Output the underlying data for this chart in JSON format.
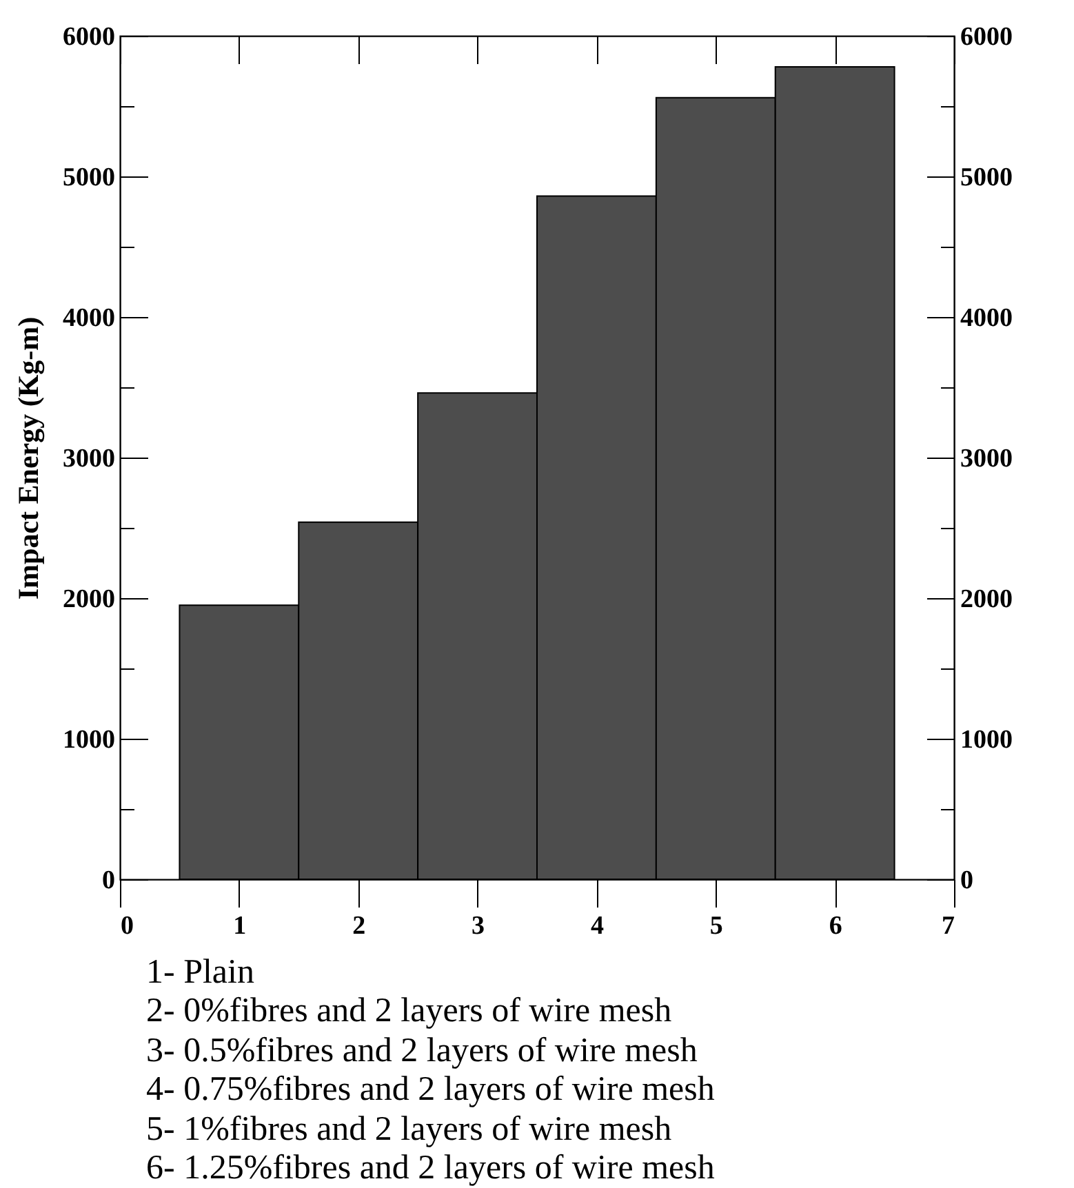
{
  "chart_data": {
    "type": "bar",
    "x": [
      1,
      2,
      3,
      4,
      5,
      6
    ],
    "values": [
      1950,
      2540,
      3460,
      4860,
      5560,
      5780
    ],
    "color": "#4d4d4d",
    "ylabel": "Impact Energy (Kg-m)",
    "xlim": [
      0,
      7
    ],
    "xticks": [
      0,
      1,
      2,
      3,
      4,
      5,
      6,
      7
    ],
    "ylim": [
      0,
      6000
    ],
    "yticks": [
      0,
      {
        "value": 500,
        "label": null
      },
      1000,
      {
        "value": 1500,
        "label": null
      },
      2000,
      {
        "value": 2500,
        "label": null
      },
      3000,
      {
        "value": 3500,
        "label": null
      },
      4000,
      {
        "value": 4500,
        "label": null
      },
      5000,
      {
        "value": 5500,
        "label": null
      },
      6000
    ],
    "y2lim": [
      0,
      6000
    ],
    "y2ticks": [
      0,
      {
        "value": 500,
        "label": null
      },
      1000,
      {
        "value": 1500,
        "label": null
      },
      2000,
      {
        "value": 2500,
        "label": null
      },
      3000,
      {
        "value": 3500,
        "label": null
      },
      4000,
      {
        "value": 4500,
        "label": null
      },
      5000,
      {
        "value": 5500,
        "label": null
      },
      6000
    ],
    "grid": false,
    "annotations": [
      "1- Plain",
      "2- 0%fibres and 2 layers of wire mesh",
      "3- 0.5%fibres and 2 layers of wire mesh",
      "4- 0.75%fibres and 2 layers of wire mesh",
      "5- 1%fibres and 2 layers of wire mesh",
      "6- 1.25%fibres and 2 layers of wire mesh"
    ]
  }
}
